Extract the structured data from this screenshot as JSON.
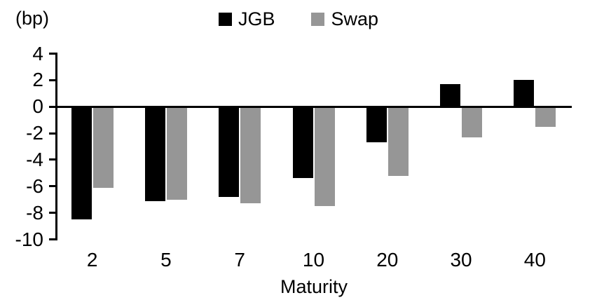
{
  "chart_data": {
    "type": "bar",
    "title": "",
    "unit_label": "(bp)",
    "xlabel": "Maturity",
    "categories": [
      "2",
      "5",
      "7",
      "10",
      "20",
      "30",
      "40"
    ],
    "series": [
      {
        "name": "JGB",
        "color": "#000000",
        "values": [
          -8.5,
          -7.1,
          -6.8,
          -5.4,
          -2.7,
          1.7,
          2.0
        ]
      },
      {
        "name": "Swap",
        "color": "#969696",
        "values": [
          -6.1,
          -7.0,
          -7.3,
          -7.5,
          -5.2,
          -2.3,
          -1.5
        ]
      }
    ],
    "ylim": [
      -10,
      4
    ],
    "yticks": [
      4,
      2,
      0,
      -2,
      -4,
      -6,
      -8,
      -10
    ],
    "grid": false,
    "legend_position": "top-center"
  }
}
